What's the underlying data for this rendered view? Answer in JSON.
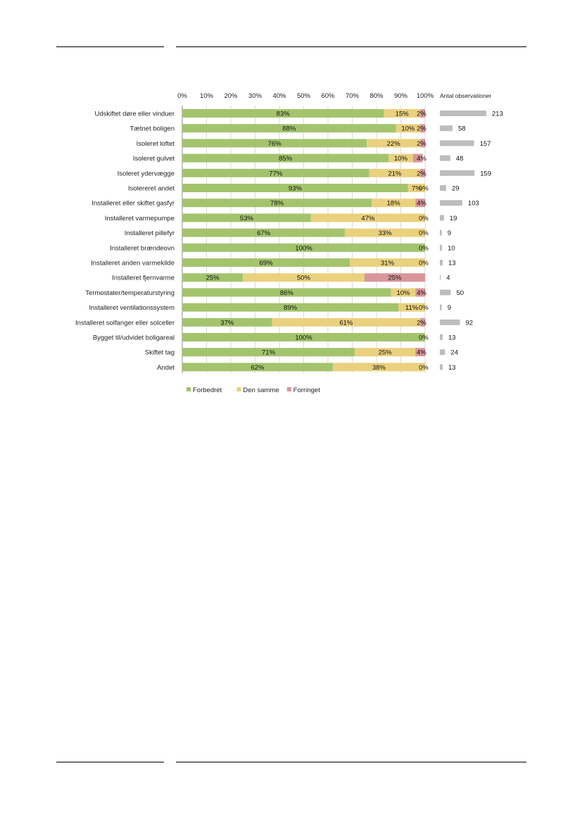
{
  "chart_data": {
    "type": "bar",
    "stacked": true,
    "orientation": "horizontal",
    "xlim": [
      0,
      100
    ],
    "x_ticks": [
      "0%",
      "10%",
      "20%",
      "30%",
      "40%",
      "50%",
      "60%",
      "70%",
      "80%",
      "90%",
      "100%"
    ],
    "grid": true,
    "legend_position": "bottom-left",
    "categories": [
      "Udskiftet døre eller vinduer",
      "Tætnet boligen",
      "Isoleret loftet",
      "Isoleret gulvet",
      "Isoleret ydervægge",
      "Isolereret andet",
      "Installeret eller skiftet gasfyr",
      "Installeret varmepumpe",
      "Installeret pillefyr",
      "Installeret brændeovn",
      "Installeret anden varmekilde",
      "Installeret fjernvarme",
      "Termostater/temperaturstyring",
      "Installeret ventilationssystem",
      "Installeret solfanger eller solceller",
      "Bygget til/udvidet boligareal",
      "Skiftet tag",
      "Andet"
    ],
    "series": [
      {
        "name": "Forbedret",
        "color": "#a3c46c",
        "values": [
          83,
          88,
          76,
          85,
          77,
          93,
          78,
          53,
          67,
          100,
          69,
          25,
          86,
          89,
          37,
          100,
          71,
          62
        ],
        "labels": [
          "83%",
          "88%",
          "76%",
          "85%",
          "77%",
          "93%",
          "78%",
          "53%",
          "67%",
          "100%",
          "69%",
          "25%",
          "86%",
          "89%",
          "37%",
          "100%",
          "71%",
          "62%"
        ]
      },
      {
        "name": "Den samme",
        "color": "#ead17e",
        "values": [
          15,
          10,
          22,
          10,
          21,
          7,
          18,
          47,
          33,
          0,
          31,
          50,
          10,
          11,
          61,
          0,
          25,
          38
        ],
        "labels": [
          "15%",
          "10%",
          "22%",
          "10%",
          "21%",
          "7%",
          "18%",
          "47%",
          "33%",
          "",
          "31%",
          "50%",
          "10%",
          "11%",
          "61%",
          "",
          "25%",
          "38%"
        ]
      },
      {
        "name": "Forringet",
        "color": "#d9969a",
        "values": [
          2,
          2,
          2,
          4,
          2,
          0,
          4,
          0,
          0,
          0,
          0,
          25,
          4,
          0,
          2,
          0,
          4,
          0
        ],
        "labels": [
          "2%",
          "2%",
          "2%",
          "4%",
          "2%",
          "0%",
          "4%",
          "0%",
          "0%",
          "0%",
          "0%",
          "25%",
          "4%",
          "0%",
          "2%",
          "0%",
          "4%",
          "0%"
        ]
      }
    ],
    "observations": {
      "title": "Antal observationer",
      "color": "#bdbdbd",
      "values": [
        213,
        58,
        157,
        48,
        159,
        29,
        103,
        19,
        9,
        10,
        13,
        4,
        50,
        9,
        92,
        13,
        24,
        13
      ]
    }
  }
}
